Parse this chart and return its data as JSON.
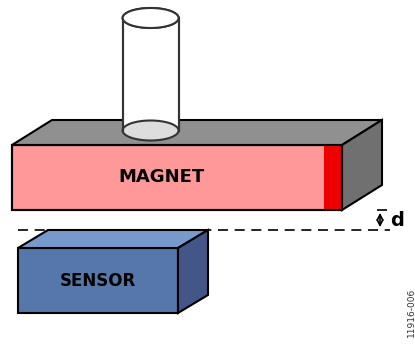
{
  "background_color": "#ffffff",
  "magnet_front_color": "#ff9999",
  "magnet_top_color": "#909090",
  "magnet_right_gray_color": "#707070",
  "magnet_red_end_color": "#ee0000",
  "sensor_front_color": "#5577aa",
  "sensor_top_color": "#7799cc",
  "sensor_right_color": "#445588",
  "shaft_color": "#ffffff",
  "shaft_edge_color": "#333333",
  "shaft_shade_color": "#dddddd",
  "dashed_line_color": "#000000",
  "arrow_color": "#000000",
  "text_color": "#000000",
  "sensor_text_color": "#000000",
  "label_d": "d",
  "label_magnet": "MAGNET",
  "label_sensor": "SENSOR",
  "watermark": "11916-006",
  "fig_w": 4.15,
  "fig_h": 3.55,
  "dpi": 100
}
